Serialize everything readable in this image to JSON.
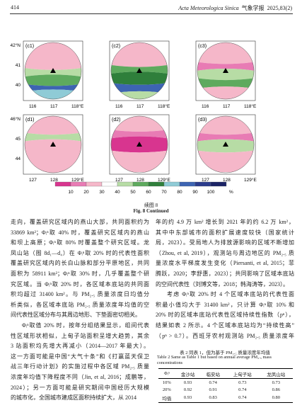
{
  "header": {
    "page": "414",
    "journal": "Acta Meteorologica Sinica",
    "journal_cn": "气象学报",
    "issue": "2025,83(2)"
  },
  "figure": {
    "panels": [
      {
        "label": "(c1)"
      },
      {
        "label": "(c2)"
      },
      {
        "label": "(c3)"
      },
      {
        "label": "(d1)"
      },
      {
        "label": "(d2)"
      },
      {
        "label": "(d3)"
      }
    ],
    "rows": [
      {
        "yticks": [
          "42°N",
          "41",
          "40"
        ],
        "xticks": [
          "116",
          "117",
          "118°E"
        ]
      },
      {
        "yticks": [
          "46°N",
          "45",
          "44"
        ],
        "xticks": [
          "127",
          "128",
          "129°E"
        ]
      }
    ],
    "colorbar": [
      "10",
      "20",
      "30",
      "40",
      "50",
      "60",
      "70",
      "80",
      "90",
      "100"
    ],
    "colorbar_unit": "%",
    "caption_cn": "续图 8",
    "caption_en": "Fig. 8  Continued"
  },
  "left_column": [
    "走向，覆盖研究区域内的燕山大部，共同面积约为",
    "33869 km²；Φᵢⁿ取 40% 时，覆盖研究区域内的燕山",
    "和坝上高原；Φᵢⁿ取 80% 时覆盖整个研究区域。龙",
    "凤山站（图 8d₁—d₄）在 Φᵢⁿ取 20% 时的代表性面积",
    "覆盖研究区域内的长白山脉和部分平原地区，共同",
    "面积为 58911 km²；Φᵢⁿ取 30% 时，几乎覆盖整个研",
    "究区域。当 Φᵢⁿ取 20% 时，各区域本底站的共同面",
    "积均超过 31400 km²。与 PM₂.₅ 质量浓度日均值分",
    "析类似，各区域本底站 PM₂.₅ 质量浓度年均值的空",
    "间代表性区域分布与其周边地形、下垫面密切相关。",
    "Φᵢⁿ取值 20% 时，按年分组结果显示，组间代表",
    "性区域形状相似，上甸子站面积呈增大趋势，其余",
    "3 站面积均先增大再减小（2014—2017 年最大）。",
    "这一方面可能是中国“大气十条”和《打赢蓝天保卫",
    "战三年行动计划》的实施过程中各区域 PM₂.₅ 质量",
    "浓度年均值下降程度不同（Jin, et al, 2016；成鹏等，",
    "2024）；另一方面可能是研究期间中国经历大规模",
    "的城市化，全国城市建成区面积持续扩大，从 2014"
  ],
  "right_column": [
    "年的约 4.9 万 km² 增长到 2021 年的约 6.2 万 km²，",
    "其中中东部城市的面积扩展速度较快（国家统计",
    "局，2023）。受局地人为排放源影响的区域不断增加",
    "（Zhou, et al, 2019），观测站与周边地区的 PM₂.₅ 质",
    "量浓度水平梯度发生变化（Piersanti, et al, 2015；菲",
    "腾跃，2020；李舒惠，2023）；共同影响了区域本底站",
    "的空间代表性（刘博文等，2018；韩海涛等，2023）。",
    "考虑 Φᵢⁿ取 20% 时 4 个区域本底站的代表性面",
    "积最小值均大于 31400 km²，只计算 Φᵢⁿ取 10% 和",
    "20% 时的区域本底站代表性区域持续性指数（pⁿ），",
    "结果如表 2 所示。4 个区域本底站均为“持续性高”",
    "（pⁿ > 0.7）。西班牙农村观测站 PM₂.₅ 质量浓度年"
  ],
  "table": {
    "title_cn": "表 2  同表 1，但为基于 PM₂.₅ 质量浓度年均值",
    "title_en": "Table 2  Same as Table 1 but based on annual average PM₂.₅ mass concentrations",
    "header": [
      "Φᵢⁿ",
      "金沙站",
      "临安站",
      "上甸子站",
      "龙凤山站"
    ],
    "rows": [
      [
        "10%",
        "0.93",
        "0.74",
        "0.73",
        "0.73"
      ],
      [
        "20%",
        "0.92",
        "0.91",
        "0.74",
        "0.86"
      ],
      [
        "均值",
        "0.93",
        "0.83",
        "0.74",
        "0.80"
      ]
    ]
  }
}
